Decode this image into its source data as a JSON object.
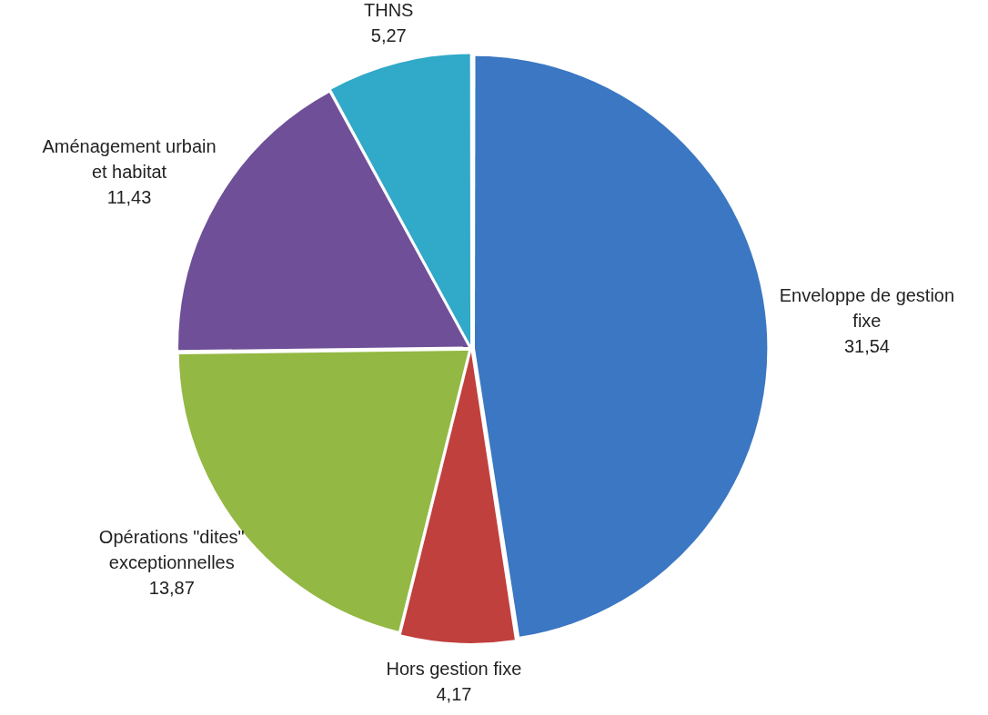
{
  "chart_data": {
    "type": "pie",
    "categories": [
      "Enveloppe de gestion fixe",
      "Hors gestion fixe",
      "Opérations \"dites\" exceptionnelles",
      "Aménagement urbain et habitat",
      "THNS"
    ],
    "values": [
      31.54,
      4.17,
      13.87,
      11.43,
      5.27
    ],
    "value_labels": [
      "31,54",
      "4,17",
      "13,87",
      "11,43",
      "5,27"
    ],
    "colors": [
      "#3b77c2",
      "#c0403e",
      "#93b843",
      "#6e4f98",
      "#31a9c8"
    ],
    "legend": false
  }
}
